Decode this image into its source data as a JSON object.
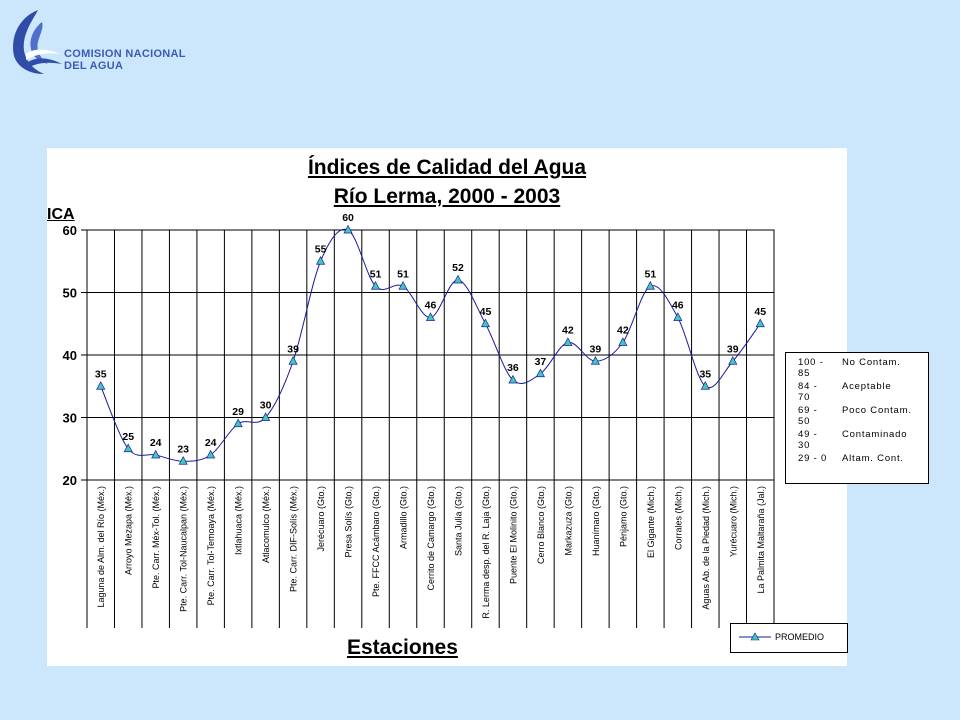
{
  "org": {
    "line1": "COMISION NACIONAL",
    "line2": "DEL AGUA"
  },
  "colors": {
    "background": "#cce6fc",
    "line": "#1a1aa0",
    "marker": "#40c8b8",
    "brand": "#2f4da8"
  },
  "legend_ranges": [
    {
      "range": "100 - 85",
      "label": "No Contam."
    },
    {
      "range": "84 - 70",
      "label": "Aceptable"
    },
    {
      "range": "69 - 50",
      "label": "Poco Contam."
    },
    {
      "range": "49 - 30",
      "label": "Contaminado"
    },
    {
      "range": "29 - 0",
      "label": "Altam. Cont."
    }
  ],
  "chart_data": {
    "type": "line",
    "title": "Índices de Calidad del Agua",
    "subtitle": "Río Lerma, 2000 - 2003",
    "ylabel": "ICA",
    "xlabel": "Estaciones",
    "ylim": [
      20,
      60
    ],
    "yticks": [
      20,
      30,
      40,
      50,
      60
    ],
    "grid": true,
    "legend_position": "bottom-right",
    "categories": [
      "Laguna de Alm. del Río (Méx.)",
      "Arroyo Mezapa (Méx.)",
      "Pte. Carr. Méx-Tol. (Méx.)",
      "Pte. Carr. Tol-Naucalpan (Méx.)",
      "Pte. Carr. Tol-Temoaya (Méx.)",
      "Ixtlahuaca (Méx.)",
      "Atlacomulco (Méx.)",
      "Pte. Carr. DIF-Solís (Méx.)",
      "Jerécuaro (Gto.)",
      "Presa Solís (Gto.)",
      "Pte. FFCC Acámbaro (Gto.)",
      "Armadillo (Gto.)",
      "Cerrito de Camargo (Gto.)",
      "Santa Julia (Gto.)",
      "R. Lerma desp. del R. Laja (Gto.)",
      "Puente El Molinito (Gto.)",
      "Cerro Blanco (Gto.)",
      "Markazuza (Gto.)",
      "Huanímaro (Gto.)",
      "Pénjamo (Gto.)",
      "El Gigante (Mich.)",
      "Corrales (Mich.)",
      "Aguas Ab. de la Piedad (Mich.)",
      "Yurécuaro (Mich.)",
      "La Palmita Maltaraña (Jal.)"
    ],
    "series": [
      {
        "name": "PROMEDIO",
        "values": [
          35,
          25,
          24,
          23,
          24,
          29,
          30,
          39,
          55,
          60,
          51,
          51,
          46,
          52,
          45,
          36,
          37,
          42,
          39,
          42,
          51,
          46,
          35,
          39,
          45
        ]
      }
    ],
    "data_labels": [
      "35",
      "25",
      "24",
      "23",
      "24",
      "29",
      "30",
      "39",
      "55",
      "60",
      "51",
      "51",
      "46",
      "52",
      "45",
      "36",
      "37",
      "42",
      "39",
      "42",
      "51",
      "46",
      "35",
      "39",
      "45"
    ]
  }
}
